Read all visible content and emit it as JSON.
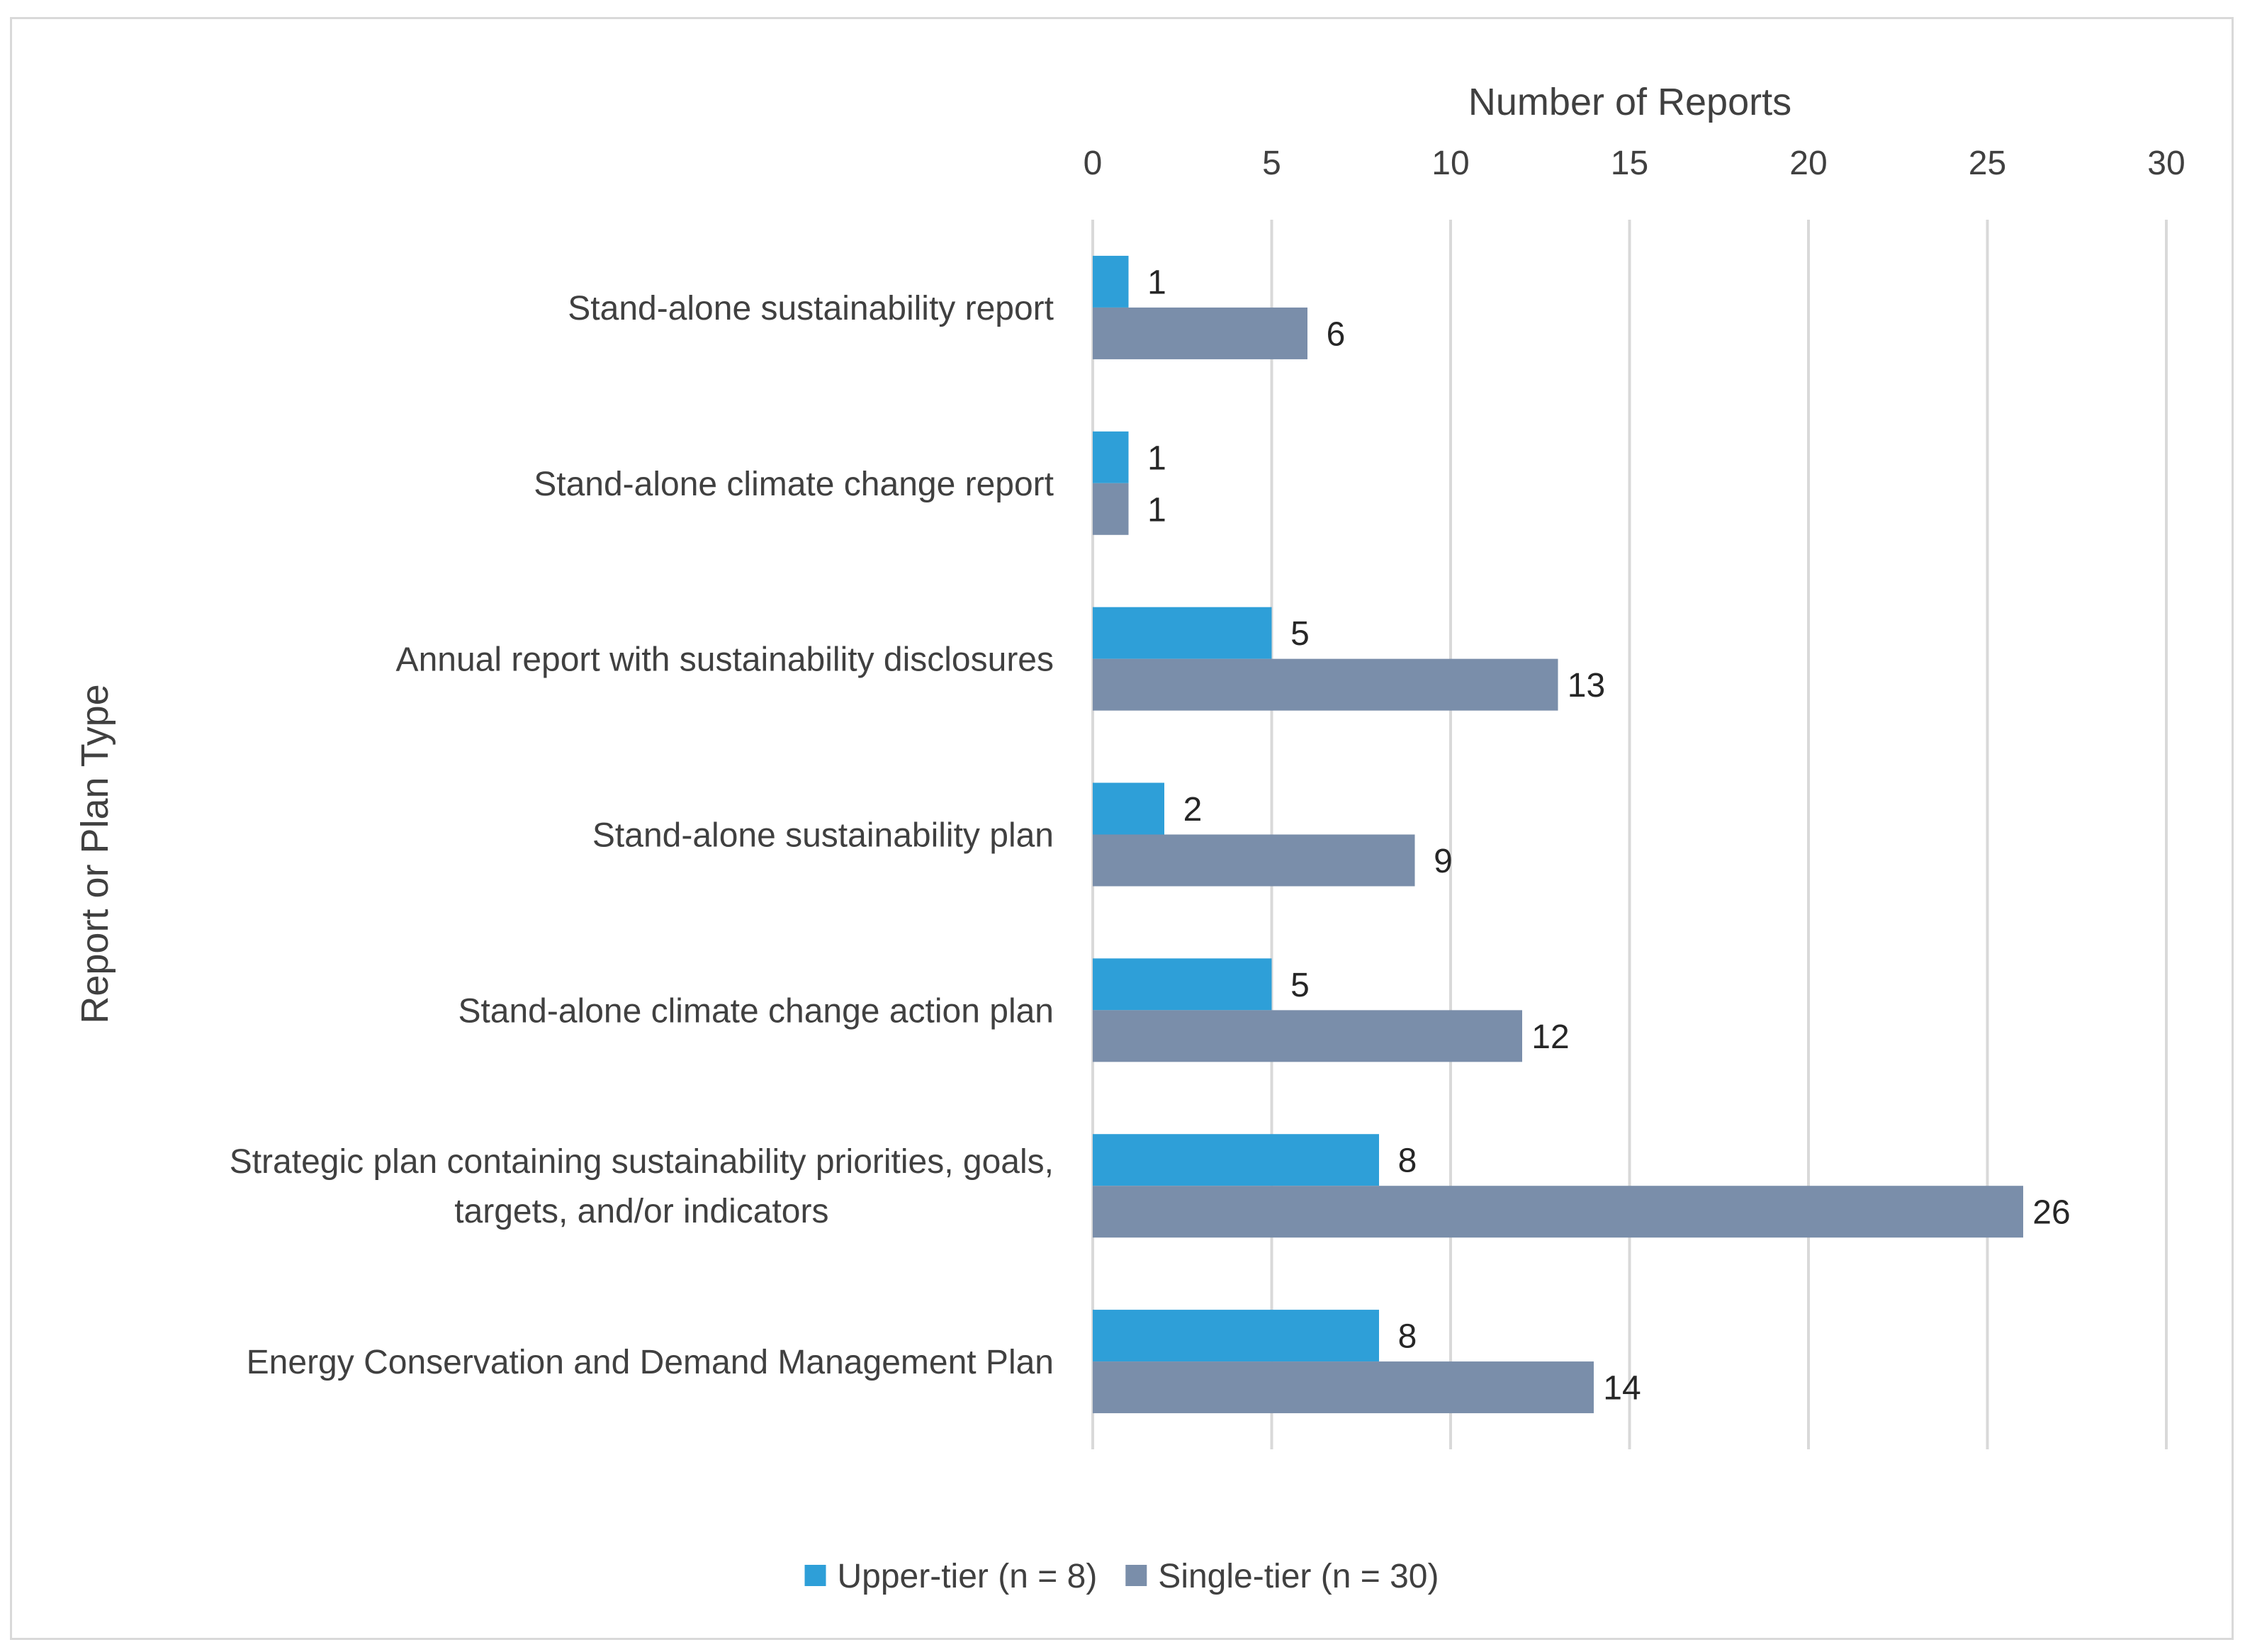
{
  "chart_data": {
    "type": "bar",
    "orientation": "horizontal",
    "xlabel": "Number of Reports",
    "ylabel": "Report or Plan Type",
    "xlim": [
      0,
      30
    ],
    "xticks": [
      0,
      5,
      10,
      15,
      20,
      25,
      30
    ],
    "grid": "vertical gridlines",
    "x_axis_position": "top",
    "legend_position": "bottom",
    "categories": [
      [
        "Stand-alone sustainability report"
      ],
      [
        "Stand-alone climate change report"
      ],
      [
        "Annual report with sustainability disclosures"
      ],
      [
        "Stand-alone sustainability plan"
      ],
      [
        "Stand-alone climate change action plan"
      ],
      [
        "Strategic plan containing sustainability priorities, goals,",
        "targets, and/or indicators"
      ],
      [
        "Energy Conservation and Demand Management Plan"
      ]
    ],
    "series": [
      {
        "name": "Upper-tier (n = 8)",
        "color": "#2e9fd8",
        "values": [
          1,
          1,
          5,
          2,
          5,
          8,
          8
        ]
      },
      {
        "name": "Single-tier (n = 30)",
        "color": "#7a8eaa",
        "values": [
          6,
          1,
          13,
          9,
          12,
          26,
          14
        ]
      }
    ],
    "colors": {
      "gridline": "#d9d9d9",
      "axis_line": "#d9d9d9",
      "text": "#404040"
    }
  }
}
